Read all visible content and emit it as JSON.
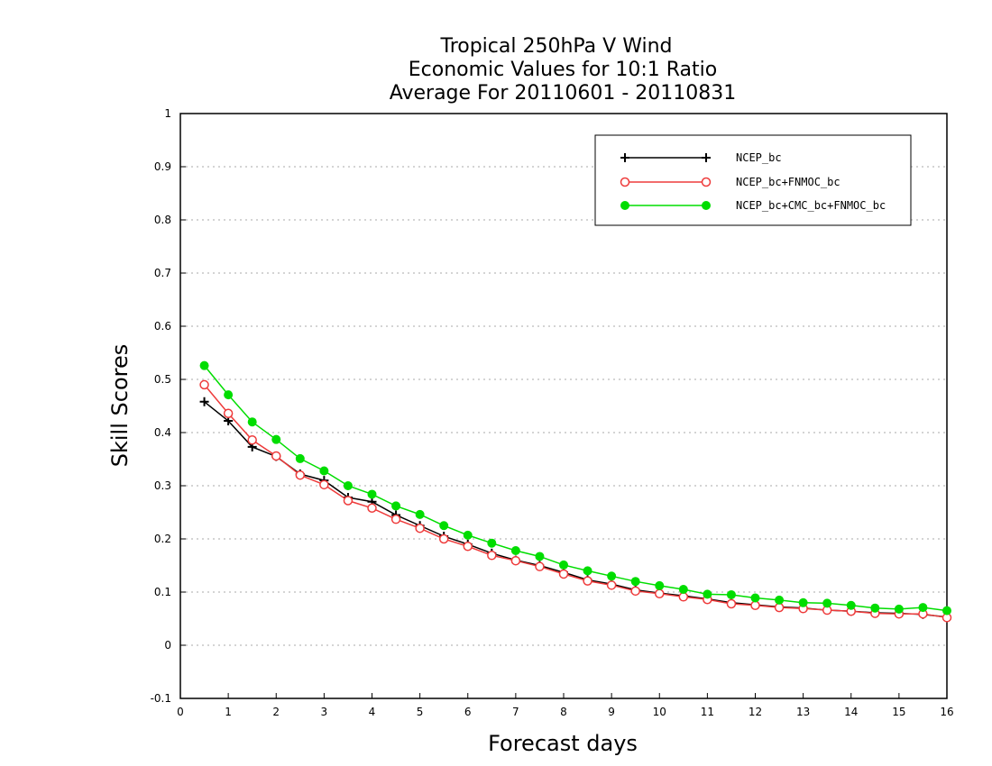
{
  "chart_data": {
    "type": "line",
    "title_lines": [
      "Tropical 250hPa V Wind",
      "Economic Values for 10:1 Ratio",
      "Average For 20110601 - 20110831"
    ],
    "xlabel": "Forecast days",
    "ylabel": "Skill Scores",
    "xlim": [
      0,
      16
    ],
    "ylim": [
      -0.1,
      1
    ],
    "xticks": [
      "0",
      "1",
      "2",
      "3",
      "4",
      "5",
      "6",
      "7",
      "8",
      "9",
      "10",
      "11",
      "12",
      "13",
      "14",
      "15",
      "16"
    ],
    "yticks": [
      "-0.1",
      "0",
      "0.1",
      "0.2",
      "0.3",
      "0.4",
      "0.5",
      "0.6",
      "0.7",
      "0.8",
      "0.9",
      "1"
    ],
    "grid": true,
    "legend_position": "top-right",
    "x": [
      0.5,
      1,
      1.5,
      2,
      2.5,
      3,
      3.5,
      4,
      4.5,
      5,
      5.5,
      6,
      6.5,
      7,
      7.5,
      8,
      8.5,
      9,
      9.5,
      10,
      10.5,
      11,
      11.5,
      12,
      12.5,
      13,
      13.5,
      14,
      14.5,
      15,
      15.5,
      16
    ],
    "series": [
      {
        "name": "NCEP_bc",
        "color": "#000000",
        "marker": "plus",
        "values": [
          0.458,
          0.422,
          0.373,
          0.355,
          0.322,
          0.31,
          0.278,
          0.27,
          0.245,
          0.225,
          0.205,
          0.19,
          0.173,
          0.16,
          0.15,
          0.137,
          0.123,
          0.115,
          0.104,
          0.098,
          0.093,
          0.087,
          0.08,
          0.076,
          0.072,
          0.07,
          0.066,
          0.064,
          0.061,
          0.06,
          0.058,
          0.053
        ]
      },
      {
        "name": "NCEP_bc+FNMOC_bc",
        "color": "#ee3b3b",
        "marker": "open-circle",
        "values": [
          0.49,
          0.436,
          0.386,
          0.356,
          0.32,
          0.302,
          0.272,
          0.258,
          0.237,
          0.22,
          0.2,
          0.186,
          0.169,
          0.159,
          0.148,
          0.134,
          0.121,
          0.113,
          0.102,
          0.097,
          0.091,
          0.086,
          0.078,
          0.075,
          0.071,
          0.069,
          0.066,
          0.064,
          0.06,
          0.059,
          0.059,
          0.052
        ]
      },
      {
        "name": "NCEP_bc+CMC_bc+FNMOC_bc",
        "color": "#00dd00",
        "marker": "filled-circle",
        "values": [
          0.526,
          0.471,
          0.42,
          0.387,
          0.351,
          0.328,
          0.3,
          0.284,
          0.262,
          0.246,
          0.225,
          0.207,
          0.192,
          0.178,
          0.167,
          0.151,
          0.14,
          0.13,
          0.12,
          0.112,
          0.105,
          0.096,
          0.095,
          0.089,
          0.085,
          0.08,
          0.079,
          0.075,
          0.07,
          0.068,
          0.071,
          0.065
        ]
      }
    ]
  }
}
